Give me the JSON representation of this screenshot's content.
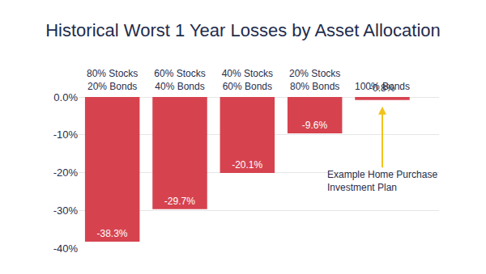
{
  "chart_data": {
    "type": "bar",
    "title": "Historical Worst 1 Year Losses by Asset Allocation",
    "categories": [
      "80% Stocks\n20% Bonds",
      "60% Stocks\n40% Bonds",
      "40% Stocks\n60% Bonds",
      "20% Stocks\n80% Bonds",
      "100% Bonds"
    ],
    "values": [
      -38.3,
      -29.7,
      -20.1,
      -9.6,
      -0.8
    ],
    "value_labels": [
      "-38.3%",
      "-29.7%",
      "-20.1%",
      "-9.6%",
      "-0.8%"
    ],
    "data_labels": true,
    "color": "#d6434f",
    "ylim": [
      -40,
      0
    ],
    "yticks": [
      {
        "value": 0,
        "label": "0.0%"
      },
      {
        "value": -10,
        "label": "-10%"
      },
      {
        "value": -20,
        "label": "-20%"
      },
      {
        "value": -30,
        "label": "-30%"
      },
      {
        "value": -40,
        "label": "-40%"
      }
    ],
    "grid": true,
    "annotations": [
      {
        "text": "Example Home Purchase\nInvestment Plan",
        "category": "100% Bonds"
      }
    ]
  }
}
